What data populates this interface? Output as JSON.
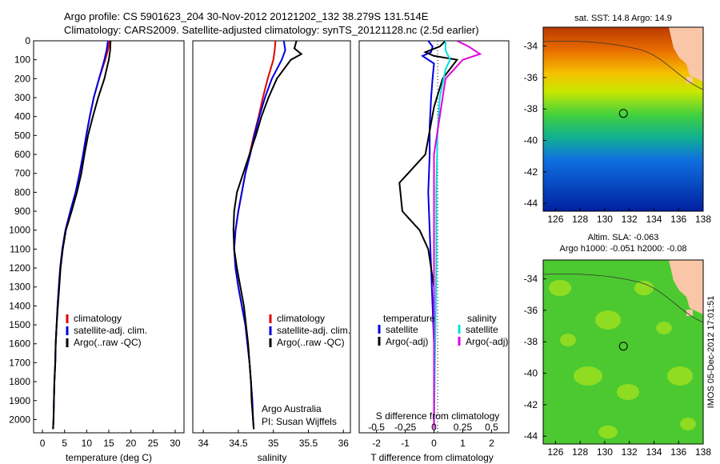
{
  "header": {
    "line1": "Argo profile: CS 5901623_204 30-Nov-2012 20121202_132 38.279S 131.514E",
    "line2": "Climatology: CARS2009. Satellite-adjusted climatology: synTS_20121128.nc (2.5d earlier)"
  },
  "colors": {
    "climatology": "#e00000",
    "satellite": "#0000e0",
    "argo": "#000000",
    "sal_satellite": "#00e0e0",
    "sal_argo": "#e000e0",
    "land": "#f9c6a8"
  },
  "depth_ticks": [
    "0",
    "100",
    "200",
    "300",
    "400",
    "500",
    "600",
    "700",
    "800",
    "900",
    "1000",
    "1100",
    "1200",
    "1300",
    "1400",
    "1500",
    "1600",
    "1700",
    "1800",
    "1900",
    "2000"
  ],
  "panels": {
    "temperature": {
      "xlabel": "temperature (deg C)",
      "ticks": [
        "0",
        "5",
        "10",
        "15",
        "20",
        "25",
        "30"
      ]
    },
    "salinity": {
      "xlabel": "salinity",
      "ticks": [
        "34",
        "34.5",
        "35",
        "35.5",
        "36"
      ],
      "note1": "Argo Australia",
      "note2": "PI: Susan Wijffels"
    },
    "difference": {
      "xlabel": "T difference from climatology",
      "xlabel_top": "S difference from climatology",
      "t_ticks": [
        "-2",
        "-1",
        "0",
        "1",
        "2"
      ],
      "s_ticks": [
        "-0.5",
        "-0.25",
        "0",
        "0.25",
        "0.5"
      ],
      "legend": {
        "temperature": "temperature",
        "salinity": "salinity",
        "satellite": "satellite",
        "argo_adj": "Argo(-adj)"
      }
    }
  },
  "legend": {
    "climatology": "climatology",
    "satellite": "satellite-adj. clim.",
    "argo": "Argo(..raw -QC)"
  },
  "maps": {
    "sst_title": "sat. SST: 14.8 Argo: 14.9",
    "sla_title1": "Altim. SLA: -0.063",
    "sla_title2": "Argo h1000: -0.051 h2000: -0.08",
    "x_ticks": [
      "126",
      "128",
      "130",
      "132",
      "134",
      "136",
      "138"
    ],
    "y_ticks": [
      "-34",
      "-36",
      "-38",
      "-40",
      "-42",
      "-44"
    ],
    "profile_lon": 131.514,
    "profile_lat": -38.279
  },
  "stamp": "IMOS 05-Dec-2012 17:01:51",
  "chart_data": [
    {
      "type": "line",
      "xlabel": "temperature (deg C)",
      "ylabel": "",
      "xlim": [
        -2,
        32
      ],
      "ylim": [
        2070,
        0
      ],
      "series": [
        {
          "name": "climatology",
          "points": [
            [
              15.2,
              0
            ],
            [
              14.8,
              50
            ],
            [
              14.2,
              100
            ],
            [
              12.8,
              200
            ],
            [
              11.6,
              300
            ],
            [
              10.7,
              400
            ],
            [
              9.9,
              500
            ],
            [
              9.2,
              600
            ],
            [
              8.4,
              700
            ],
            [
              7.5,
              800
            ],
            [
              6.3,
              900
            ],
            [
              5.2,
              1000
            ],
            [
              4.5,
              1100
            ],
            [
              4.0,
              1200
            ],
            [
              3.7,
              1300
            ],
            [
              3.4,
              1400
            ],
            [
              3.2,
              1500
            ],
            [
              3.0,
              1600
            ],
            [
              2.9,
              1700
            ],
            [
              2.7,
              1800
            ],
            [
              2.6,
              1900
            ],
            [
              2.5,
              2000
            ],
            [
              2.4,
              2050
            ]
          ]
        },
        {
          "name": "satellite-adj. clim.",
          "points": [
            [
              14.8,
              0
            ],
            [
              14.5,
              50
            ],
            [
              14.0,
              100
            ],
            [
              12.8,
              200
            ],
            [
              11.6,
              300
            ],
            [
              10.7,
              400
            ],
            [
              9.9,
              500
            ],
            [
              9.2,
              600
            ],
            [
              8.4,
              700
            ],
            [
              7.5,
              800
            ],
            [
              6.3,
              900
            ],
            [
              5.2,
              1000
            ],
            [
              4.5,
              1100
            ],
            [
              4.0,
              1200
            ],
            [
              3.7,
              1300
            ],
            [
              3.4,
              1400
            ],
            [
              3.2,
              1500
            ],
            [
              3.0,
              1600
            ],
            [
              2.9,
              1700
            ],
            [
              2.7,
              1800
            ],
            [
              2.6,
              1900
            ],
            [
              2.5,
              2000
            ],
            [
              2.4,
              2050
            ]
          ]
        },
        {
          "name": "Argo(..raw -QC)",
          "points": [
            [
              15.4,
              0
            ],
            [
              15.3,
              50
            ],
            [
              15.0,
              100
            ],
            [
              14.0,
              200
            ],
            [
              12.6,
              300
            ],
            [
              11.4,
              400
            ],
            [
              10.3,
              500
            ],
            [
              9.5,
              600
            ],
            [
              8.8,
              700
            ],
            [
              7.8,
              800
            ],
            [
              6.6,
              900
            ],
            [
              5.3,
              1000
            ],
            [
              4.6,
              1100
            ],
            [
              4.1,
              1200
            ],
            [
              3.8,
              1300
            ],
            [
              3.5,
              1400
            ],
            [
              3.2,
              1500
            ],
            [
              3.0,
              1600
            ],
            [
              2.9,
              1700
            ],
            [
              2.7,
              1800
            ],
            [
              2.6,
              1900
            ],
            [
              2.5,
              2000
            ],
            [
              2.4,
              2050
            ]
          ]
        }
      ]
    },
    {
      "type": "line",
      "xlabel": "salinity",
      "ylabel": "",
      "xlim": [
        33.85,
        36.1
      ],
      "ylim": [
        2070,
        0
      ],
      "series": [
        {
          "name": "climatology",
          "points": [
            [
              35.03,
              0
            ],
            [
              35.02,
              50
            ],
            [
              35.0,
              100
            ],
            [
              34.92,
              200
            ],
            [
              34.85,
              300
            ],
            [
              34.79,
              400
            ],
            [
              34.72,
              500
            ],
            [
              34.66,
              600
            ],
            [
              34.6,
              700
            ],
            [
              34.55,
              800
            ],
            [
              34.5,
              900
            ],
            [
              34.46,
              1000
            ],
            [
              34.44,
              1100
            ],
            [
              34.46,
              1200
            ],
            [
              34.5,
              1300
            ],
            [
              34.55,
              1400
            ],
            [
              34.6,
              1500
            ],
            [
              34.63,
              1600
            ],
            [
              34.66,
              1700
            ],
            [
              34.68,
              1800
            ],
            [
              34.7,
              1900
            ],
            [
              34.71,
              2000
            ],
            [
              34.72,
              2050
            ]
          ]
        },
        {
          "name": "satellite-adj. clim.",
          "points": [
            [
              35.15,
              0
            ],
            [
              35.17,
              50
            ],
            [
              35.12,
              100
            ],
            [
              34.98,
              200
            ],
            [
              34.88,
              300
            ],
            [
              34.8,
              400
            ],
            [
              34.73,
              500
            ],
            [
              34.67,
              600
            ],
            [
              34.6,
              700
            ],
            [
              34.55,
              800
            ],
            [
              34.5,
              900
            ],
            [
              34.46,
              1000
            ],
            [
              34.44,
              1100
            ],
            [
              34.46,
              1200
            ],
            [
              34.5,
              1300
            ],
            [
              34.55,
              1400
            ],
            [
              34.6,
              1500
            ],
            [
              34.63,
              1600
            ],
            [
              34.66,
              1700
            ],
            [
              34.68,
              1800
            ],
            [
              34.7,
              1900
            ],
            [
              34.71,
              2000
            ],
            [
              34.72,
              2050
            ]
          ]
        },
        {
          "name": "Argo(..raw -QC)",
          "points": [
            [
              35.33,
              0
            ],
            [
              35.3,
              40
            ],
            [
              35.4,
              70
            ],
            [
              35.25,
              100
            ],
            [
              35.05,
              200
            ],
            [
              34.93,
              300
            ],
            [
              34.83,
              400
            ],
            [
              34.75,
              500
            ],
            [
              34.66,
              600
            ],
            [
              34.57,
              700
            ],
            [
              34.48,
              800
            ],
            [
              34.44,
              900
            ],
            [
              34.43,
              1000
            ],
            [
              34.44,
              1100
            ],
            [
              34.48,
              1200
            ],
            [
              34.53,
              1300
            ],
            [
              34.58,
              1400
            ],
            [
              34.61,
              1500
            ],
            [
              34.64,
              1600
            ],
            [
              34.66,
              1700
            ],
            [
              34.68,
              1800
            ],
            [
              34.69,
              1900
            ],
            [
              34.71,
              2000
            ],
            [
              34.72,
              2050
            ]
          ]
        }
      ]
    },
    {
      "type": "line",
      "xlabel": "T difference from climatology",
      "ylabel": "",
      "xlim": [
        -2.6,
        2.6
      ],
      "ylim": [
        2070,
        0
      ],
      "series": [
        {
          "name": "temperature satellite",
          "points": [
            [
              -0.2,
              0
            ],
            [
              -0.05,
              30
            ],
            [
              -0.1,
              60
            ],
            [
              -0.4,
              80
            ],
            [
              0.0,
              120
            ],
            [
              -0.05,
              200
            ],
            [
              -0.1,
              300
            ],
            [
              -0.15,
              450
            ],
            [
              -0.15,
              600
            ],
            [
              -0.2,
              800
            ],
            [
              -0.15,
              1000
            ],
            [
              -0.1,
              1200
            ],
            [
              -0.05,
              1400
            ],
            [
              0.0,
              1600
            ],
            [
              0.0,
              2050
            ]
          ]
        },
        {
          "name": "temperature Argo(-adj)",
          "points": [
            [
              0.4,
              0
            ],
            [
              0.2,
              30
            ],
            [
              -0.3,
              60
            ],
            [
              0.0,
              80
            ],
            [
              0.8,
              100
            ],
            [
              0.3,
              200
            ],
            [
              0.0,
              350
            ],
            [
              -0.3,
              600
            ],
            [
              -1.2,
              750
            ],
            [
              -1.1,
              900
            ],
            [
              -0.5,
              1000
            ],
            [
              -0.2,
              1100
            ],
            [
              0.0,
              1300
            ],
            [
              0.0,
              2050
            ]
          ]
        },
        {
          "name": "salinity satellite",
          "points": [
            [
              0.1,
              0
            ],
            [
              0.1,
              50
            ],
            [
              0.14,
              100
            ],
            [
              0.1,
              150
            ],
            [
              0.05,
              300
            ],
            [
              0.03,
              500
            ],
            [
              0.02,
              800
            ],
            [
              0.02,
              1200
            ],
            [
              0.0,
              2050
            ]
          ]
        },
        {
          "name": "salinity Argo(-adj)",
          "points": [
            [
              0.2,
              0
            ],
            [
              0.3,
              30
            ],
            [
              0.4,
              70
            ],
            [
              0.25,
              100
            ],
            [
              0.1,
              200
            ],
            [
              0.05,
              400
            ],
            [
              0.0,
              600
            ],
            [
              0.0,
              2050
            ]
          ]
        }
      ]
    }
  ]
}
